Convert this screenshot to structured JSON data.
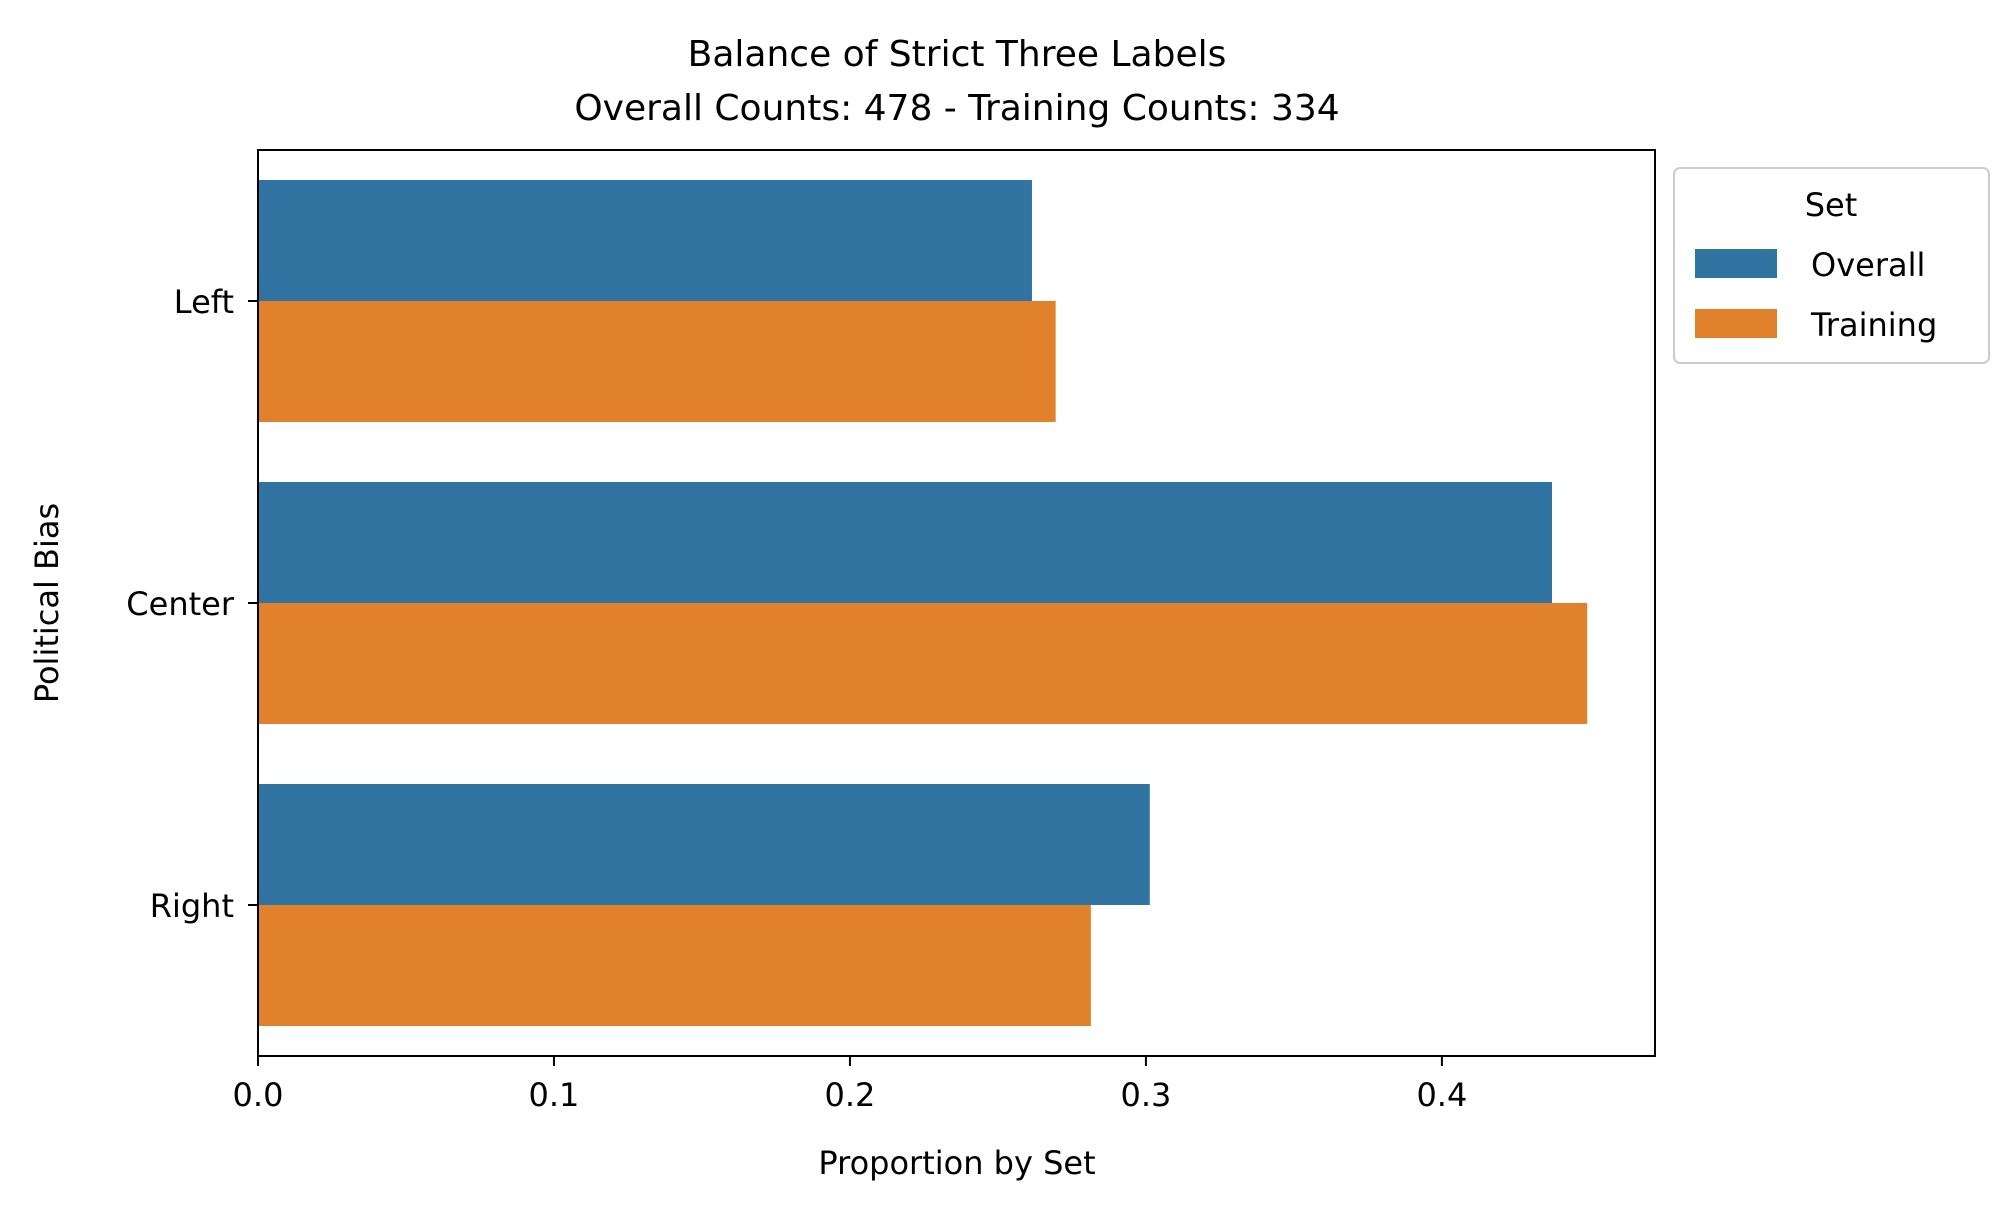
{
  "chart_data": {
    "type": "bar",
    "orientation": "horizontal",
    "title": "Balance of Strict Three Labels",
    "subtitle": "Overall Counts: 478 - Training Counts: 334",
    "xlabel": "Proportion by Set",
    "ylabel": "Political Bias",
    "categories": [
      "Left",
      "Center",
      "Right"
    ],
    "series": [
      {
        "name": "Overall",
        "color": "#3274a1",
        "values": [
          0.2615,
          0.4372,
          0.3013
        ]
      },
      {
        "name": "Training",
        "color": "#e1812c",
        "values": [
          0.2695,
          0.4491,
          0.2814
        ]
      }
    ],
    "xlim": [
      0.0,
      0.472
    ],
    "xticks": [
      0.0,
      0.1,
      0.2,
      0.3,
      0.4
    ],
    "xtick_labels": [
      "0.0",
      "0.1",
      "0.2",
      "0.3",
      "0.4"
    ],
    "grid": false,
    "legend": {
      "title": "Set",
      "position": "outside-top-right"
    }
  }
}
